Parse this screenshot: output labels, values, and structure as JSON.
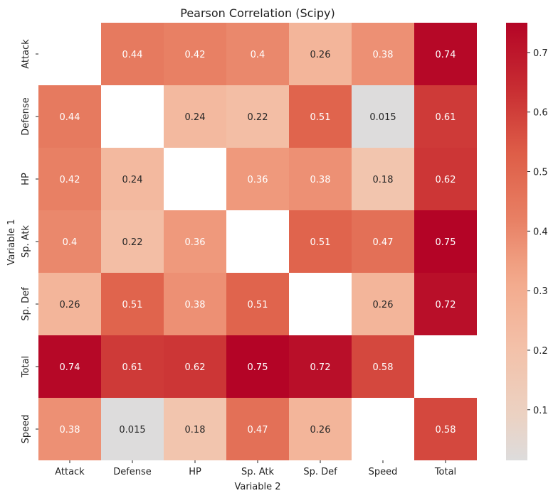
{
  "chart_data": {
    "type": "heatmap",
    "title": "Pearson Correlation (Scipy)",
    "xlabel": "Variable 2",
    "ylabel": "Variable 1",
    "x_categories": [
      "Attack",
      "Defense",
      "HP",
      "Sp. Atk",
      "Sp. Def",
      "Speed",
      "Total"
    ],
    "y_categories": [
      "Attack",
      "Defense",
      "HP",
      "Sp. Atk",
      "Sp. Def",
      "Total",
      "Speed"
    ],
    "values": [
      [
        null,
        0.44,
        0.42,
        0.4,
        0.26,
        0.38,
        0.74
      ],
      [
        0.44,
        null,
        0.24,
        0.22,
        0.51,
        0.015,
        0.61
      ],
      [
        0.42,
        0.24,
        null,
        0.36,
        0.38,
        0.18,
        0.62
      ],
      [
        0.4,
        0.22,
        0.36,
        null,
        0.51,
        0.47,
        0.75
      ],
      [
        0.26,
        0.51,
        0.38,
        0.51,
        null,
        0.26,
        0.72
      ],
      [
        0.74,
        0.61,
        0.62,
        0.75,
        0.72,
        0.58,
        null
      ],
      [
        0.38,
        0.015,
        0.18,
        0.47,
        0.26,
        null,
        0.58
      ]
    ],
    "colormap": "coolwarm-like (center 0)",
    "colorbar": {
      "range": [
        0.015,
        0.75
      ],
      "ticks": [
        0.1,
        0.2,
        0.3,
        0.4,
        0.5,
        0.6,
        0.7
      ]
    },
    "colors": {
      "low": "#dddcdc",
      "high": "#b40426",
      "cell_text_dark": "#262626",
      "cell_text_light": "#ffffff"
    }
  }
}
